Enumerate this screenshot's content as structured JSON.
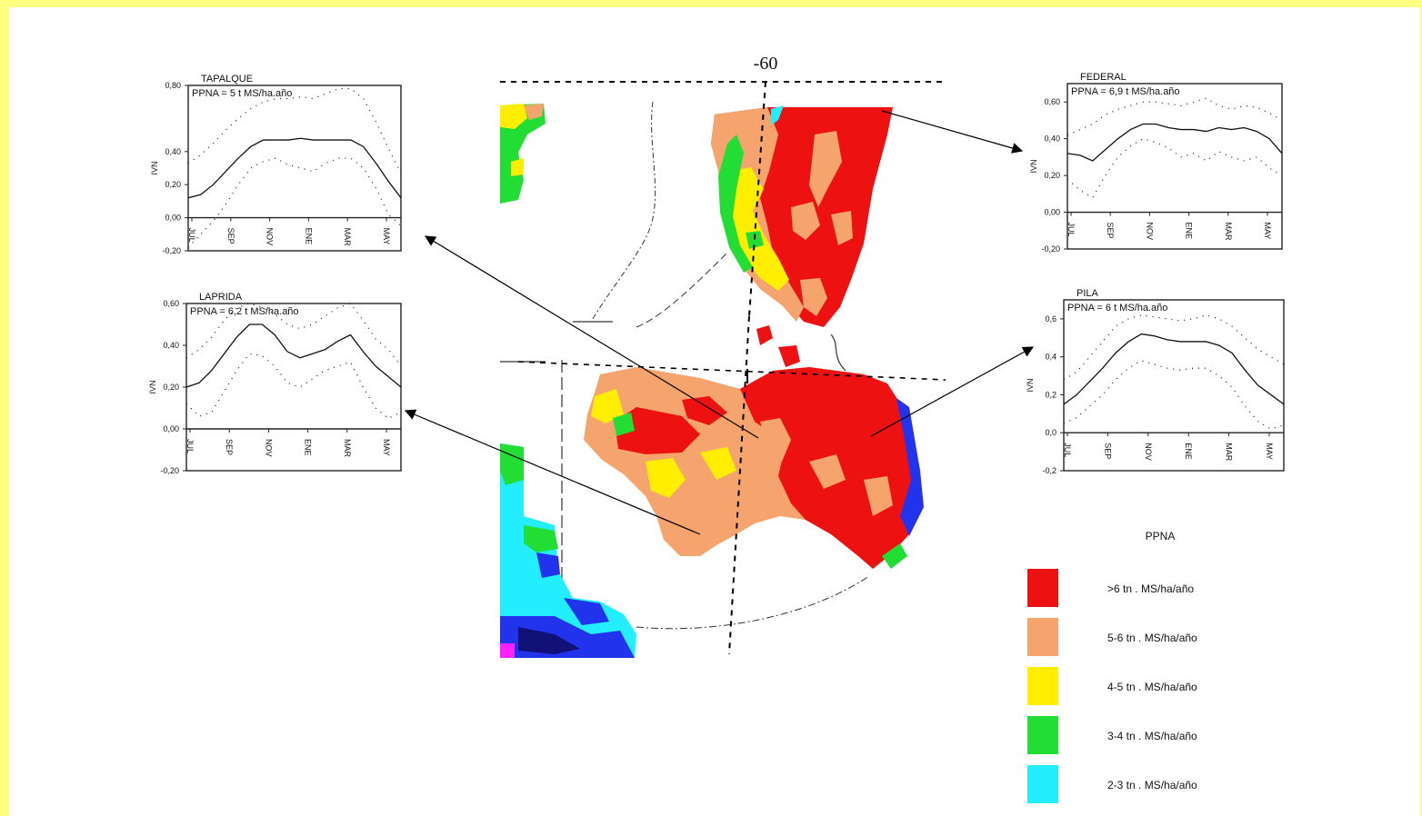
{
  "map": {
    "meridian_label": "-60",
    "legend": {
      "title": "PPNA",
      "items": [
        {
          "label": ">6 tn . MS/ha/año",
          "color": "#ee1111"
        },
        {
          "label": "5-6 tn . MS/ha/año",
          "color": "#f4a46c"
        },
        {
          "label": "4-5 tn . MS/ha/año",
          "color": "#ffee00"
        },
        {
          "label": "3-4 tn . MS/ha/año",
          "color": "#22dd33"
        },
        {
          "label": "2-3 tn . MS/ha/año",
          "color": "#22eeff"
        }
      ]
    },
    "palette": {
      "red": "#ee1111",
      "orange": "#f4a46c",
      "yellow": "#ffee00",
      "green": "#22dd33",
      "cyan": "#22eeff",
      "blue": "#2233ee",
      "navy": "#111177",
      "magenta": "#ff22ff"
    }
  },
  "chart_data": [
    {
      "type": "line",
      "title": "TAPALQUE",
      "annotation": "PPNA = 5 t MS/ha.año",
      "ylabel": "IVN",
      "ylim": [
        -0.2,
        0.8
      ],
      "yticks": [
        "0,80",
        "0,40",
        "0,20",
        "0,00",
        "-0,20"
      ],
      "ytick_values": [
        0.8,
        0.4,
        0.2,
        0.0,
        -0.2
      ],
      "xticks": [
        "JUL",
        "SEP",
        "NOV",
        "ENE",
        "MAR",
        "MAY"
      ],
      "series": [
        {
          "style": "solid",
          "values": [
            0.12,
            0.14,
            0.2,
            0.28,
            0.36,
            0.43,
            0.47,
            0.47,
            0.47,
            0.48,
            0.47,
            0.47,
            0.47,
            0.47,
            0.43,
            0.33,
            0.22,
            0.12
          ]
        },
        {
          "style": "dotted",
          "values": [
            0.33,
            0.38,
            0.45,
            0.53,
            0.6,
            0.66,
            0.7,
            0.72,
            0.72,
            0.73,
            0.72,
            0.75,
            0.78,
            0.78,
            0.72,
            0.58,
            0.42,
            0.27
          ]
        },
        {
          "style": "dotted",
          "values": [
            -0.18,
            -0.1,
            -0.02,
            0.08,
            0.2,
            0.3,
            0.34,
            0.36,
            0.32,
            0.3,
            0.28,
            0.33,
            0.36,
            0.36,
            0.3,
            0.18,
            0.02,
            -0.05
          ]
        }
      ]
    },
    {
      "type": "line",
      "title": "LAPRIDA",
      "annotation": "PPNA = 6,2 t MS/ha.año",
      "ylabel": "IVN",
      "ylim": [
        -0.2,
        0.6
      ],
      "yticks": [
        "0,60",
        "0,40",
        "0,20",
        "0,00",
        "-0,20"
      ],
      "ytick_values": [
        0.6,
        0.4,
        0.2,
        0.0,
        -0.2
      ],
      "xticks": [
        "JUL",
        "SEP",
        "NOV",
        "ENE",
        "MAR",
        "MAY"
      ],
      "series": [
        {
          "style": "solid",
          "values": [
            0.2,
            0.22,
            0.28,
            0.36,
            0.44,
            0.5,
            0.5,
            0.45,
            0.37,
            0.34,
            0.36,
            0.38,
            0.42,
            0.45,
            0.37,
            0.3,
            0.25,
            0.2
          ]
        },
        {
          "style": "dotted",
          "values": [
            0.34,
            0.38,
            0.44,
            0.52,
            0.58,
            0.6,
            0.58,
            0.55,
            0.5,
            0.48,
            0.5,
            0.54,
            0.58,
            0.6,
            0.52,
            0.43,
            0.38,
            0.3
          ]
        },
        {
          "style": "dotted",
          "values": [
            0.12,
            0.06,
            0.08,
            0.18,
            0.28,
            0.36,
            0.35,
            0.3,
            0.22,
            0.2,
            0.24,
            0.28,
            0.3,
            0.32,
            0.2,
            0.1,
            0.05,
            0.08
          ]
        }
      ]
    },
    {
      "type": "line",
      "title": "FEDERAL",
      "annotation": "PPNA = 6,9 t MS/ha.año",
      "ylabel": "IVN",
      "ylim": [
        -0.2,
        0.7
      ],
      "yticks": [
        "0,60",
        "0,40",
        "0,20",
        "0,00",
        "-0,20"
      ],
      "ytick_values": [
        0.6,
        0.4,
        0.2,
        0.0,
        -0.2
      ],
      "xticks": [
        "JUL",
        "SEP",
        "NOV",
        "ENE",
        "MAR",
        "MAY"
      ],
      "series": [
        {
          "style": "solid",
          "values": [
            0.32,
            0.31,
            0.28,
            0.34,
            0.4,
            0.45,
            0.48,
            0.48,
            0.46,
            0.45,
            0.45,
            0.44,
            0.46,
            0.45,
            0.46,
            0.44,
            0.4,
            0.32
          ]
        },
        {
          "style": "dotted",
          "values": [
            0.42,
            0.45,
            0.48,
            0.53,
            0.56,
            0.58,
            0.6,
            0.6,
            0.59,
            0.58,
            0.6,
            0.62,
            0.58,
            0.56,
            0.58,
            0.57,
            0.54,
            0.5
          ]
        },
        {
          "style": "dotted",
          "values": [
            0.18,
            0.12,
            0.08,
            0.2,
            0.3,
            0.36,
            0.4,
            0.38,
            0.35,
            0.3,
            0.32,
            0.28,
            0.33,
            0.3,
            0.28,
            0.3,
            0.24,
            0.2
          ]
        }
      ]
    },
    {
      "type": "line",
      "title": "PILA",
      "annotation": "PPNA = 6 t MS/ha.año",
      "ylabel": "IVN",
      "ylim": [
        -0.2,
        0.7
      ],
      "yticks": [
        "0,6",
        "0,4",
        "0,2",
        "0,0",
        "-0,2"
      ],
      "ytick_values": [
        0.6,
        0.4,
        0.2,
        0.0,
        -0.2
      ],
      "xticks": [
        "JUL",
        "SEP",
        "NOV",
        "ENE",
        "MAR",
        "MAY"
      ],
      "series": [
        {
          "style": "solid",
          "values": [
            0.15,
            0.2,
            0.27,
            0.34,
            0.42,
            0.48,
            0.52,
            0.51,
            0.49,
            0.48,
            0.48,
            0.48,
            0.46,
            0.42,
            0.33,
            0.25,
            0.2,
            0.15
          ]
        },
        {
          "style": "dotted",
          "values": [
            0.28,
            0.32,
            0.4,
            0.48,
            0.56,
            0.6,
            0.62,
            0.61,
            0.6,
            0.59,
            0.6,
            0.62,
            0.6,
            0.56,
            0.5,
            0.44,
            0.4,
            0.36
          ]
        },
        {
          "style": "dotted",
          "values": [
            0.05,
            0.08,
            0.14,
            0.2,
            0.28,
            0.34,
            0.38,
            0.36,
            0.34,
            0.33,
            0.34,
            0.34,
            0.3,
            0.24,
            0.14,
            0.06,
            0.02,
            0.04
          ]
        }
      ]
    }
  ]
}
